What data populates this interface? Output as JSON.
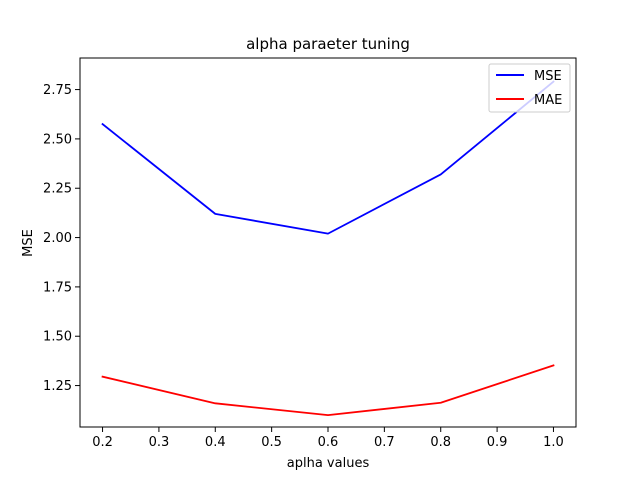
{
  "chart_data": {
    "type": "line",
    "title": "alpha paraeter tuning",
    "xlabel": "aplha values",
    "ylabel": "MSE",
    "x": [
      0.2,
      0.4,
      0.6,
      0.8,
      1.0
    ],
    "xlim": [
      0.16,
      1.04
    ],
    "ylim": [
      1.04,
      2.91
    ],
    "xticks": [
      "0.2",
      "0.3",
      "0.4",
      "0.5",
      "0.6",
      "0.7",
      "0.8",
      "0.9",
      "1.0"
    ],
    "yticks": [
      "1.25",
      "1.50",
      "1.75",
      "2.00",
      "2.25",
      "2.50",
      "2.75"
    ],
    "grid": false,
    "legend_position": "top-right",
    "series": [
      {
        "name": "MSE",
        "color": "#0000ff",
        "values": [
          2.575,
          2.12,
          2.02,
          2.32,
          2.79
        ]
      },
      {
        "name": "MAE",
        "color": "#ff0000",
        "values": [
          1.295,
          1.16,
          1.1,
          1.163,
          1.352
        ]
      }
    ]
  }
}
